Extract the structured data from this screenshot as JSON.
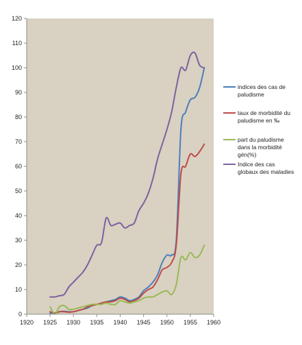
{
  "chart_data": {
    "type": "line",
    "xlim": [
      1920,
      1960
    ],
    "ylim": [
      0,
      120
    ],
    "x_ticks": [
      "1920",
      "1925",
      "1930",
      "1935",
      "1940",
      "1945",
      "1950",
      "1955",
      "1960"
    ],
    "y_ticks": [
      "0",
      "10",
      "20",
      "30",
      "40",
      "50",
      "60",
      "70",
      "80",
      "90",
      "100",
      "110",
      "120"
    ],
    "plot_background": "#d9d1c1",
    "legend_position": "right",
    "grid": false,
    "series": [
      {
        "name": "indices des cas de paludisme",
        "color": "#4a7ebb",
        "x": [
          1925,
          1926,
          1927,
          1928,
          1929,
          1930,
          1931,
          1932,
          1933,
          1934,
          1935,
          1936,
          1937,
          1938,
          1939,
          1940,
          1941,
          1942,
          1943,
          1944,
          1945,
          1946,
          1947,
          1948,
          1949,
          1950,
          1951,
          1952,
          1953,
          1954,
          1955,
          1956,
          1957,
          1958
        ],
        "y": [
          0.5,
          0.3,
          1,
          1.2,
          1,
          1,
          1.5,
          2,
          2.5,
          3.5,
          4,
          4.5,
          5,
          5.5,
          6,
          7,
          6.5,
          5.5,
          6,
          7,
          9.5,
          11,
          13,
          16,
          21,
          24,
          24,
          30,
          75,
          82,
          87,
          88,
          92,
          100
        ]
      },
      {
        "name": "taux de morbidité du paludisme en ‰",
        "color": "#be4b48",
        "x": [
          1925,
          1926,
          1927,
          1928,
          1929,
          1930,
          1931,
          1932,
          1933,
          1934,
          1935,
          1936,
          1937,
          1938,
          1939,
          1940,
          1941,
          1942,
          1943,
          1944,
          1945,
          1946,
          1947,
          1948,
          1949,
          1950,
          1951,
          1952,
          1953,
          1954,
          1955,
          1956,
          1957,
          1958
        ],
        "y": [
          1,
          0.5,
          1,
          1,
          0.8,
          1,
          1.5,
          2,
          3,
          3.5,
          4,
          4.5,
          5,
          5,
          5.5,
          6.5,
          6,
          5,
          5.5,
          6.5,
          8.5,
          10,
          11,
          14,
          18,
          19,
          21,
          28,
          57,
          60,
          65,
          64,
          66,
          69
        ]
      },
      {
        "name": "part du paludisme dans la morbidité gén(%)",
        "color": "#98b954",
        "x": [
          1925,
          1926,
          1927,
          1928,
          1929,
          1930,
          1931,
          1932,
          1933,
          1934,
          1935,
          1936,
          1937,
          1938,
          1939,
          1940,
          1941,
          1942,
          1943,
          1944,
          1945,
          1946,
          1947,
          1948,
          1949,
          1950,
          1951,
          1952,
          1953,
          1954,
          1955,
          1956,
          1957,
          1958
        ],
        "y": [
          3,
          0,
          3,
          3.5,
          2,
          2,
          2.5,
          3,
          3.5,
          4,
          4,
          4,
          4.5,
          4,
          4,
          5.5,
          5,
          4.5,
          5,
          5.5,
          6.5,
          7,
          7,
          8,
          9,
          9.5,
          8,
          12,
          23,
          22,
          25,
          23,
          24,
          28
        ]
      },
      {
        "name": "Indice des cas globaux des maladies",
        "color": "#7d60a0",
        "x": [
          1925,
          1926,
          1927,
          1928,
          1929,
          1930,
          1931,
          1932,
          1933,
          1934,
          1935,
          1936,
          1937,
          1938,
          1939,
          1940,
          1941,
          1942,
          1943,
          1944,
          1945,
          1946,
          1947,
          1948,
          1949,
          1950,
          1951,
          1952,
          1953,
          1954,
          1955,
          1956,
          1957,
          1958
        ],
        "y": [
          7,
          7,
          7.5,
          8,
          11,
          13,
          15,
          17,
          20,
          24,
          28,
          29,
          39,
          36,
          36.5,
          37,
          35,
          36,
          37,
          42,
          45,
          49,
          55,
          63,
          69,
          75,
          82,
          92,
          100,
          99,
          105,
          106,
          101,
          100
        ]
      }
    ]
  }
}
